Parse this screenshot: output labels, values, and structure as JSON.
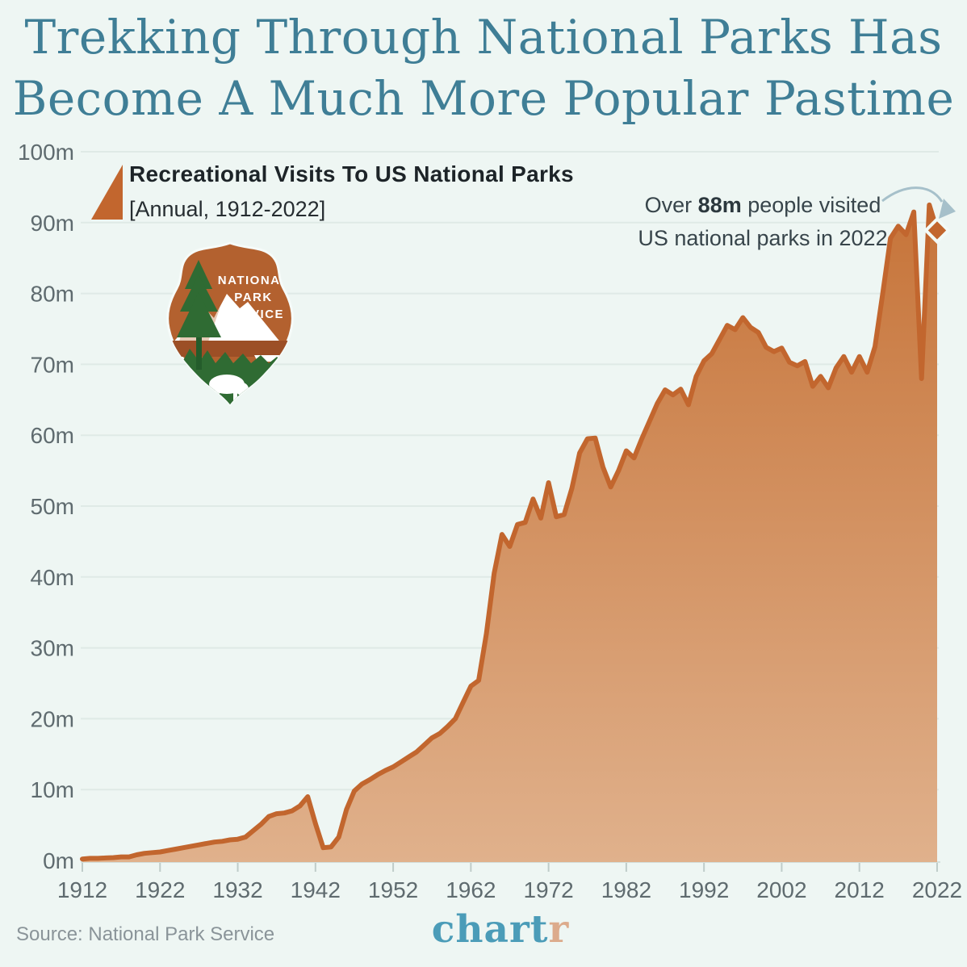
{
  "title": {
    "line1": "Trekking Through National Parks Has",
    "line2": "Become A Much More Popular Pastime"
  },
  "legend": {
    "title": "Recreational Visits To US National Parks",
    "subtitle": "[Annual, 1912-2022]"
  },
  "annotation": {
    "line1_prefix": "Over ",
    "line1_value": "88m",
    "line1_suffix": " people visited",
    "line2": "US national parks in 2022"
  },
  "nps_logo": {
    "lines": [
      "NATIONAL",
      "PARK",
      "SERVICE"
    ]
  },
  "footer": {
    "source": "Source: National Park Service",
    "brand_part1": "chart",
    "brand_part2": "r"
  },
  "colors": {
    "background": "#eef6f3",
    "title_teal": "#3f7e96",
    "line_orange": "#c2662e",
    "fill_top": "#c67338",
    "fill_bottom": "#e0b18c",
    "gridline": "#dfeae6",
    "axis_text": "#5f6b6f",
    "annotation_arrow": "#a6c0ca",
    "brand_teal": "#4b9cb8",
    "brand_salmon": "#dcab8c",
    "logo_body": "#b3612f"
  },
  "chart_data": {
    "type": "area",
    "title": "Recreational Visits To US National Parks",
    "subtitle": "[Annual, 1912-2022]",
    "xlabel": "",
    "ylabel": "",
    "ylim": [
      0,
      100
    ],
    "grid": true,
    "x_start": 1912,
    "x_end": 2022,
    "x_ticks": [
      1912,
      1922,
      1932,
      1942,
      1952,
      1962,
      1972,
      1982,
      1992,
      2002,
      2012,
      2022
    ],
    "y_ticks": [
      {
        "v": 0,
        "label": "0m"
      },
      {
        "v": 10,
        "label": "10m"
      },
      {
        "v": 20,
        "label": "20m"
      },
      {
        "v": 30,
        "label": "30m"
      },
      {
        "v": 40,
        "label": "40m"
      },
      {
        "v": 50,
        "label": "50m"
      },
      {
        "v": 60,
        "label": "60m"
      },
      {
        "v": 70,
        "label": "70m"
      },
      {
        "v": 80,
        "label": "80m"
      },
      {
        "v": 90,
        "label": "90m"
      },
      {
        "v": 100,
        "label": "100m"
      }
    ],
    "series": [
      {
        "name": "Recreational Visits To US National Parks (millions)",
        "start_year": 1912,
        "values": [
          0.2,
          0.3,
          0.3,
          0.35,
          0.4,
          0.5,
          0.5,
          0.8,
          1.0,
          1.1,
          1.2,
          1.4,
          1.6,
          1.8,
          2.0,
          2.2,
          2.4,
          2.6,
          2.7,
          2.9,
          3.0,
          3.3,
          4.2,
          5.1,
          6.2,
          6.6,
          6.7,
          7.0,
          7.7,
          9.0,
          5.2,
          1.8,
          1.9,
          3.3,
          7.2,
          9.8,
          10.8,
          11.4,
          12.1,
          12.7,
          13.2,
          13.9,
          14.6,
          15.3,
          16.3,
          17.3,
          17.9,
          18.9,
          20.0,
          22.3,
          24.6,
          25.4,
          32.0,
          40.5,
          46.0,
          44.3,
          47.4,
          47.7,
          51.0,
          48.3,
          53.3,
          48.5,
          48.8,
          52.5,
          57.5,
          59.5,
          59.6,
          55.5,
          52.7,
          55.0,
          57.8,
          56.8,
          59.5,
          62.0,
          64.5,
          66.4,
          65.7,
          66.5,
          64.3,
          68.3,
          70.5,
          71.5,
          73.5,
          75.5,
          74.9,
          76.6,
          75.2,
          74.5,
          72.4,
          71.8,
          72.3,
          70.3,
          69.8,
          70.4,
          66.9,
          68.3,
          66.7,
          69.5,
          71.1,
          68.9,
          71.1,
          68.9,
          72.5,
          80.0,
          87.8,
          89.5,
          88.3,
          91.5,
          68.0,
          92.5,
          88.9
        ]
      }
    ],
    "end_marker": {
      "year": 2022,
      "value": 88.9
    },
    "annotation_text": "Over 88m people visited US national parks in 2022",
    "legend_position": "top-left"
  }
}
